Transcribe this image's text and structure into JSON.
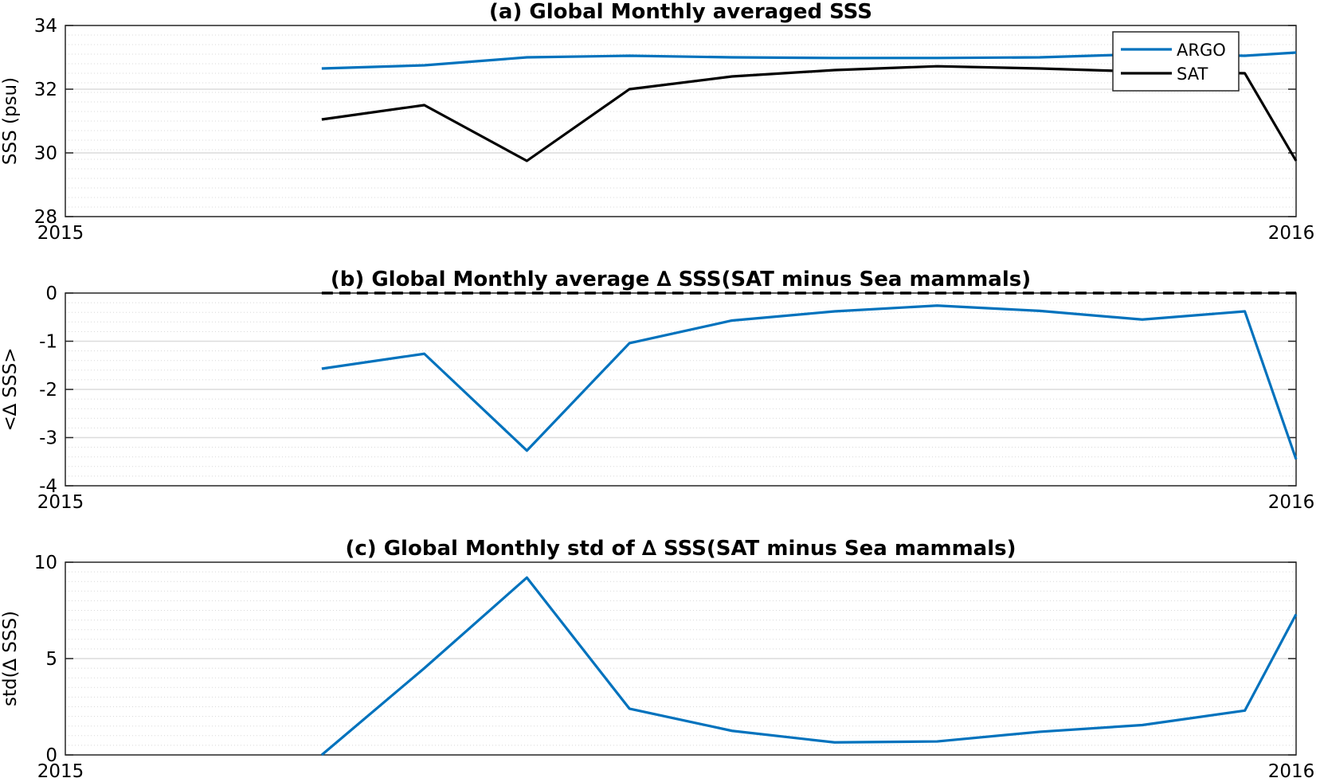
{
  "chart_data": [
    {
      "type": "line",
      "title": "(a) Global Monthly averaged SSS",
      "ylabel": "SSS (psu)",
      "xlabel": "",
      "xlim": [
        0,
        12
      ],
      "ylim": [
        28,
        34
      ],
      "yticks": [
        28,
        30,
        32,
        34
      ],
      "xtick_labels": [
        "2015",
        "2016"
      ],
      "grid": true,
      "minor_grid": true,
      "legend": "top-right",
      "x": [
        2.5,
        3.5,
        4.5,
        5.5,
        6.5,
        7.5,
        8.5,
        9.5,
        10.5,
        11.5,
        12
      ],
      "series": [
        {
          "name": "ARGO",
          "color": "#0072BD",
          "values": [
            32.65,
            32.75,
            33.0,
            33.05,
            33.0,
            32.98,
            32.98,
            33.0,
            33.1,
            33.05,
            33.15
          ]
        },
        {
          "name": "SAT",
          "color": "#000000",
          "values": [
            31.05,
            31.5,
            29.75,
            32.0,
            32.4,
            32.6,
            32.72,
            32.65,
            32.55,
            32.5,
            29.75
          ]
        }
      ]
    },
    {
      "type": "line",
      "title": "(b) Global Monthly average ∆ SSS(SAT minus Sea mammals)",
      "ylabel": "<∆ SSS>",
      "xlabel": "",
      "xlim": [
        0,
        12
      ],
      "ylim": [
        -4,
        0
      ],
      "yticks": [
        -4,
        -3,
        -2,
        -1,
        0
      ],
      "xtick_labels": [
        "2015",
        "2016"
      ],
      "grid": true,
      "minor_grid": true,
      "reference_line": {
        "y": 0,
        "x_from": 2.5,
        "x_to": 12,
        "style": "dashed",
        "color": "#000000"
      },
      "x": [
        2.5,
        3.5,
        4.5,
        5.5,
        6.5,
        7.5,
        8.5,
        9.5,
        10.5,
        11.5,
        12
      ],
      "series": [
        {
          "color": "#0072BD",
          "values": [
            -1.57,
            -1.26,
            -3.27,
            -1.04,
            -0.57,
            -0.38,
            -0.26,
            -0.37,
            -0.55,
            -0.38,
            -3.45
          ]
        }
      ]
    },
    {
      "type": "line",
      "title": "(c) Global Monthly std of ∆ SSS(SAT minus Sea mammals)",
      "ylabel": "std(∆ SSS)",
      "xlabel": "",
      "xlim": [
        0,
        12
      ],
      "ylim": [
        0,
        10
      ],
      "yticks": [
        0,
        5,
        10
      ],
      "xtick_labels": [
        "2015",
        "2016"
      ],
      "grid": true,
      "minor_grid": true,
      "x": [
        2.5,
        3.5,
        4.5,
        5.5,
        6.5,
        7.5,
        8.5,
        9.5,
        10.5,
        11.5,
        12
      ],
      "series": [
        {
          "color": "#0072BD",
          "values": [
            0.0,
            4.5,
            9.2,
            2.4,
            1.25,
            0.65,
            0.7,
            1.2,
            1.55,
            2.3,
            7.3
          ]
        }
      ]
    }
  ]
}
